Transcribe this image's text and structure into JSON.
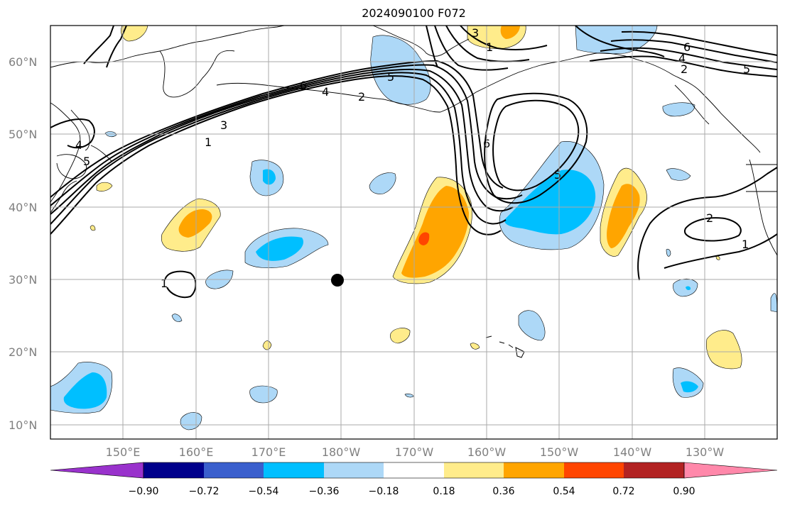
{
  "title": "2024090100 F072",
  "map": {
    "lat_labels": [
      "10°N",
      "20°N",
      "30°N",
      "40°N",
      "50°N",
      "60°N"
    ],
    "lon_labels": [
      "150°E",
      "160°E",
      "170°E",
      "180°W",
      "170°W",
      "160°W",
      "150°W",
      "140°W",
      "130°W"
    ],
    "contour_labels": [
      "6",
      "4",
      "2",
      "3",
      "1",
      "5",
      "5",
      "4",
      "1",
      "3",
      "6",
      "5",
      "4",
      "2",
      "6",
      "5",
      "2",
      "1",
      "1"
    ],
    "marker": {
      "label": "",
      "lon": "180°W",
      "lat": "30°N"
    }
  },
  "colorbar": {
    "tick_labels": [
      "−0.90",
      "−0.72",
      "−0.54",
      "−0.36",
      "−0.18",
      "0.18",
      "0.36",
      "0.54",
      "0.72",
      "0.90"
    ],
    "colors": [
      "#9932cc",
      "#00008b",
      "#3a5fcd",
      "#00bfff",
      "#add8f7",
      "#ffffff",
      "#ffec8b",
      "#ffa500",
      "#ff4500",
      "#b22222",
      "#ff88aa"
    ]
  },
  "colors": {
    "light_blue": "#add8f7",
    "blue": "#00bfff",
    "yellow": "#ffec8b",
    "orange": "#ffa500",
    "red_orange": "#ff4500",
    "grid": "#aaaaaa",
    "label": "#808080"
  }
}
